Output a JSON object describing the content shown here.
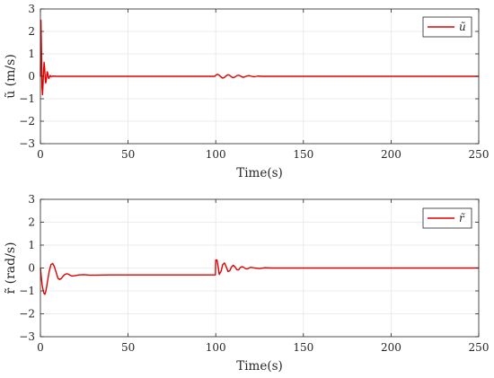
{
  "chart_data": [
    {
      "type": "line",
      "xlabel": "Time(s)",
      "ylabel": "ũ (m/s)",
      "xlim": [
        0,
        250
      ],
      "ylim": [
        -3,
        3
      ],
      "xticks": [
        "0",
        "50",
        "100",
        "150",
        "200",
        "250"
      ],
      "yticks": [
        "3",
        "2",
        "1",
        "0",
        "−1",
        "−2",
        "−3"
      ],
      "grid": true,
      "legend_position": "top-right",
      "series": [
        {
          "name": "ũ",
          "color": "#e00000",
          "x": [
            0,
            0.3,
            0.6,
            0.9,
            1.2,
            1.5,
            1.8,
            2.1,
            2.4,
            2.7,
            3.0,
            3.3,
            3.6,
            3.9,
            4.2,
            4.5,
            4.8,
            5.1,
            5.6,
            6.2,
            7,
            9,
            15,
            30,
            60,
            99.5,
            100,
            101,
            102,
            103,
            104,
            105,
            106,
            107,
            108,
            109,
            110,
            111,
            112,
            113,
            114,
            115,
            116,
            117,
            118,
            119,
            120,
            121,
            122,
            124,
            126,
            130,
            150,
            200,
            250
          ],
          "y": [
            0,
            2.5,
            1.2,
            -0.5,
            -0.82,
            -0.35,
            0.25,
            0.62,
            0.4,
            -0.05,
            -0.3,
            -0.2,
            0.05,
            0.2,
            0.12,
            -0.05,
            -0.1,
            -0.04,
            0.04,
            -0.02,
            0.01,
            0,
            0,
            0,
            0,
            0,
            0.05,
            0.09,
            0.05,
            -0.03,
            -0.08,
            -0.05,
            0.03,
            0.07,
            0.04,
            -0.03,
            -0.06,
            -0.03,
            0.03,
            0.05,
            0.02,
            -0.03,
            -0.04,
            -0.01,
            0.02,
            0.03,
            0.01,
            -0.01,
            -0.02,
            0.01,
            0,
            0,
            0,
            0,
            0
          ]
        }
      ]
    },
    {
      "type": "line",
      "xlabel": "Time(s)",
      "ylabel": "r̃ (rad/s)",
      "xlim": [
        0,
        250
      ],
      "ylim": [
        -3,
        3
      ],
      "xticks": [
        "0",
        "50",
        "100",
        "150",
        "200",
        "250"
      ],
      "yticks": [
        "3",
        "2",
        "1",
        "0",
        "−1",
        "−2",
        "−3"
      ],
      "grid": true,
      "legend_position": "top-right",
      "series": [
        {
          "name": "r̃",
          "color": "#e00000",
          "x": [
            0,
            0.5,
            1,
            1.5,
            2,
            2.5,
            3,
            3.5,
            4,
            5,
            6,
            7,
            8,
            9,
            10,
            11,
            12,
            13,
            14,
            15,
            16,
            17,
            18,
            20,
            22,
            25,
            28,
            32,
            40,
            60,
            80,
            99.8,
            100,
            100.7,
            101.4,
            102,
            103,
            104,
            105,
            106,
            107,
            108,
            109,
            110,
            111,
            112,
            113,
            114,
            115,
            116,
            117,
            118,
            119,
            120,
            122,
            125,
            128,
            132,
            140,
            160,
            200,
            250
          ],
          "y": [
            0,
            -0.4,
            -0.75,
            -0.95,
            -1.1,
            -1.15,
            -1.05,
            -0.85,
            -0.6,
            -0.15,
            0.15,
            0.2,
            0.05,
            -0.2,
            -0.45,
            -0.5,
            -0.45,
            -0.35,
            -0.28,
            -0.25,
            -0.27,
            -0.32,
            -0.35,
            -0.33,
            -0.3,
            -0.29,
            -0.31,
            -0.31,
            -0.3,
            -0.3,
            -0.3,
            -0.3,
            0.35,
            0.35,
            0.05,
            -0.28,
            -0.15,
            0.15,
            0.22,
            0.05,
            -0.15,
            -0.12,
            0.05,
            0.12,
            0.05,
            -0.07,
            -0.08,
            0.02,
            0.06,
            0.03,
            -0.03,
            -0.04,
            0,
            0.03,
            0,
            -0.02,
            0.01,
            0,
            0,
            0,
            0,
            0
          ]
        }
      ]
    }
  ]
}
